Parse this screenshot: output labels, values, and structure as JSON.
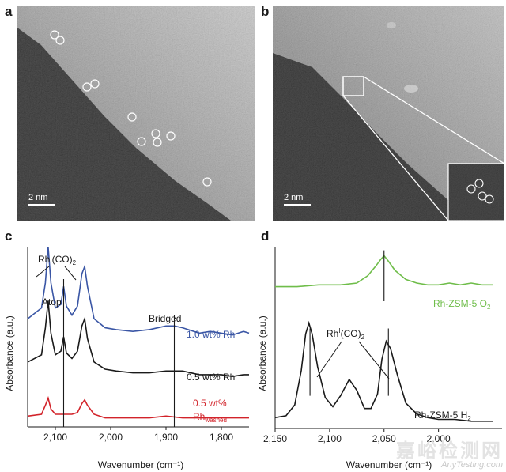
{
  "figure": {
    "panels": {
      "a": {
        "label": "a",
        "scale_bar": "2 nm",
        "atom_markers": 11
      },
      "b": {
        "label": "b",
        "scale_bar": "2 nm",
        "inset_atom_markers": 4
      },
      "c": {
        "label": "c"
      },
      "d": {
        "label": "d"
      }
    },
    "watermark": {
      "text": "嘉峪检测网",
      "url": "AnyTesting.com"
    }
  },
  "chart_data": [
    {
      "type": "line",
      "panel": "c",
      "xlabel": "Wavenumber (cm⁻¹)",
      "ylabel": "Absorbance (a.u.)",
      "xlim": [
        2150,
        1750
      ],
      "x_reversed": true,
      "xticks": [
        "2,100",
        "2,000",
        "1,900",
        "1,800"
      ],
      "series": [
        {
          "name": "1.0 wt% Rh",
          "color": "#3a56a5",
          "x": [
            2150,
            2125,
            2118,
            2113,
            2108,
            2100,
            2090,
            2085,
            2080,
            2070,
            2060,
            2052,
            2047,
            2042,
            2030,
            2010,
            1990,
            1960,
            1930,
            1900,
            1885,
            1870,
            1840,
            1820,
            1800,
            1780,
            1760,
            1750
          ],
          "y": [
            0.6,
            0.66,
            0.8,
            1.0,
            0.8,
            0.66,
            0.68,
            0.78,
            0.67,
            0.62,
            0.67,
            0.85,
            0.89,
            0.78,
            0.6,
            0.55,
            0.54,
            0.53,
            0.54,
            0.56,
            0.56,
            0.55,
            0.52,
            0.53,
            0.52,
            0.51,
            0.53,
            0.52
          ]
        },
        {
          "name": "0.5 wt% Rh",
          "color": "#1a1a1a",
          "x": [
            2150,
            2125,
            2118,
            2113,
            2108,
            2100,
            2090,
            2085,
            2080,
            2070,
            2060,
            2052,
            2047,
            2042,
            2030,
            2010,
            1990,
            1960,
            1930,
            1900,
            1885,
            1870,
            1840,
            1820,
            1800,
            1780,
            1760,
            1750
          ],
          "y": [
            0.36,
            0.4,
            0.55,
            0.7,
            0.52,
            0.4,
            0.42,
            0.5,
            0.41,
            0.38,
            0.42,
            0.56,
            0.6,
            0.49,
            0.36,
            0.32,
            0.31,
            0.3,
            0.3,
            0.31,
            0.31,
            0.31,
            0.29,
            0.29,
            0.29,
            0.28,
            0.29,
            0.29
          ]
        },
        {
          "name": "0.5 wt% Rh_washed",
          "color": "#d2232a",
          "x": [
            2150,
            2125,
            2118,
            2113,
            2108,
            2100,
            2090,
            2080,
            2070,
            2060,
            2052,
            2047,
            2042,
            2030,
            2010,
            1990,
            1960,
            1930,
            1900,
            1870,
            1840,
            1800,
            1760,
            1750
          ],
          "y": [
            0.06,
            0.07,
            0.12,
            0.16,
            0.1,
            0.07,
            0.07,
            0.07,
            0.07,
            0.08,
            0.13,
            0.15,
            0.12,
            0.07,
            0.05,
            0.05,
            0.05,
            0.05,
            0.06,
            0.05,
            0.05,
            0.05,
            0.05,
            0.05
          ]
        }
      ],
      "markers": [
        {
          "label": "Atop",
          "x": 2085
        },
        {
          "label": "Bridged",
          "x": 1885
        }
      ],
      "annotations": {
        "rh_co2_main": "Rh",
        "rh_co2_sup": "I",
        "rh_co2_tail": "(CO)",
        "rh_co2_sub": "2",
        "atop": "Atop",
        "bridged": "Bridged",
        "washed_prefix": "0.5 wt%",
        "washed_main": "Rh",
        "washed_sub": "washed"
      },
      "peak_lines_x": [
        2113,
        2047
      ]
    },
    {
      "type": "line",
      "panel": "d",
      "xlabel": "Wavenumber (cm⁻¹)",
      "ylabel": "Absorbance (a.u.)",
      "xlim": [
        2150,
        1950
      ],
      "x_reversed": true,
      "xticks": [
        "2,150",
        "2,100",
        "2,050",
        "2,000"
      ],
      "series": [
        {
          "name": "Rh-ZSM-5 O2",
          "color": "#6fbd4a",
          "x": [
            2150,
            2130,
            2110,
            2090,
            2075,
            2065,
            2058,
            2053,
            2050,
            2046,
            2040,
            2030,
            2020,
            2010,
            2000,
            1990,
            1980,
            1970,
            1960,
            1950
          ],
          "y": [
            0.78,
            0.78,
            0.79,
            0.79,
            0.8,
            0.84,
            0.89,
            0.93,
            0.95,
            0.92,
            0.87,
            0.82,
            0.8,
            0.79,
            0.79,
            0.8,
            0.79,
            0.8,
            0.79,
            0.79
          ]
        },
        {
          "name": "Rh-ZSM-5 H2",
          "color": "#1a1a1a",
          "x": [
            2150,
            2140,
            2132,
            2126,
            2122,
            2119,
            2116,
            2111,
            2104,
            2097,
            2090,
            2082,
            2075,
            2068,
            2062,
            2056,
            2052,
            2048,
            2044,
            2038,
            2030,
            2020,
            2010,
            2000,
            1985,
            1970,
            1960,
            1950
          ],
          "y": [
            0.06,
            0.07,
            0.13,
            0.32,
            0.52,
            0.58,
            0.52,
            0.34,
            0.17,
            0.12,
            0.18,
            0.27,
            0.21,
            0.11,
            0.11,
            0.19,
            0.38,
            0.48,
            0.44,
            0.3,
            0.14,
            0.08,
            0.06,
            0.05,
            0.05,
            0.04,
            0.04,
            0.04
          ]
        }
      ],
      "annotations": {
        "rh_co2_main": "Rh",
        "rh_co2_sup": "I",
        "rh_co2_tail": "(CO)",
        "rh_co2_sub": "2",
        "o2_main": "Rh-ZSM-5 O",
        "o2_sub": "2",
        "h2_main": "Rh-ZSM-5 H",
        "h2_sub": "2"
      },
      "peak_lines_x": [
        2118,
        2046
      ],
      "center_line_x": 2050
    }
  ]
}
